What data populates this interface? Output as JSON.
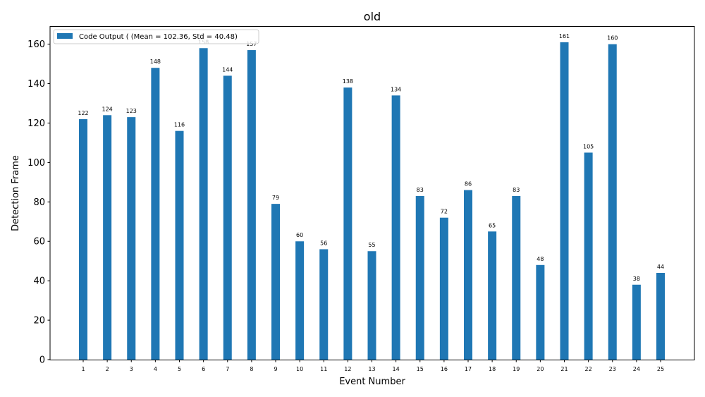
{
  "chart_data": {
    "type": "bar",
    "title": "old",
    "xlabel": "Event Number",
    "ylabel": "Detection Frame",
    "categories": [
      "1",
      "2",
      "3",
      "4",
      "5",
      "6",
      "7",
      "8",
      "9",
      "10",
      "11",
      "12",
      "13",
      "14",
      "15",
      "16",
      "17",
      "18",
      "19",
      "20",
      "21",
      "22",
      "23",
      "24",
      "25"
    ],
    "series": [
      {
        "name": "Code Output ( (Mean = 102.36, Std = 40.48)",
        "color": "#1f77b4",
        "values": [
          122,
          124,
          123,
          148,
          116,
          158,
          144,
          157,
          79,
          60,
          56,
          138,
          55,
          134,
          83,
          72,
          86,
          65,
          83,
          48,
          161,
          105,
          160,
          38,
          44
        ]
      }
    ],
    "data_labels": [
      "122",
      "124",
      "123",
      "148",
      "116",
      "158",
      "144",
      "157",
      "79",
      "60",
      "56",
      "138",
      "55",
      "134",
      "83",
      "72",
      "86",
      "65",
      "83",
      "48",
      "161",
      "105",
      "160",
      "38",
      "44"
    ],
    "yticks": [
      0,
      20,
      40,
      60,
      80,
      100,
      120,
      140,
      160
    ],
    "ytick_labels": [
      "0",
      "20",
      "40",
      "60",
      "80",
      "100",
      "120",
      "140",
      "160"
    ],
    "ylim": [
      0,
      169
    ],
    "grid": false,
    "legend_position": "top-left"
  }
}
